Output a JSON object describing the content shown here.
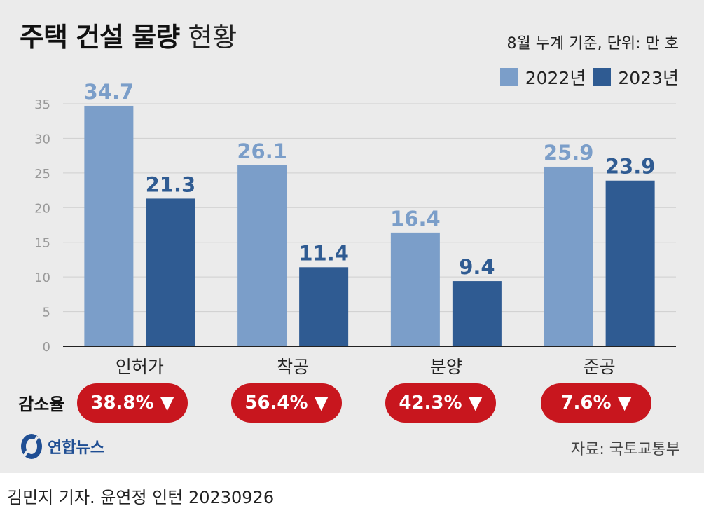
{
  "header": {
    "title_bold": "주택 건설 물량",
    "title_light": "현황",
    "subtitle": "8월 누계 기준, 단위: 만 호"
  },
  "chart_data": {
    "type": "bar",
    "categories": [
      "인허가",
      "착공",
      "분양",
      "준공"
    ],
    "series": [
      {
        "name": "2022년",
        "values": [
          34.7,
          26.1,
          16.4,
          25.9
        ],
        "color": "#7b9ec9",
        "labels": [
          "34.7",
          "26.1",
          "16.4",
          "25.9"
        ]
      },
      {
        "name": "2023년",
        "values": [
          21.3,
          11.4,
          9.4,
          23.9
        ],
        "color": "#2f5b92",
        "labels": [
          "21.3",
          "11.4",
          "9.4",
          "23.9"
        ]
      }
    ],
    "ylim": [
      0,
      35
    ],
    "yticks": [
      "0",
      "5",
      "10",
      "15",
      "20",
      "25",
      "30",
      "35"
    ],
    "grid": true,
    "legend": "top-right"
  },
  "decrease": {
    "label": "감소율",
    "rates": [
      "38.8% ▼",
      "56.4% ▼",
      "42.3% ▼",
      "7.6% ▼"
    ],
    "color": "#c8161e"
  },
  "footer": {
    "logo_text": "연합뉴스",
    "source": "자료: 국토교통부",
    "credit": "김민지 기자. 윤연정 인턴  20230926"
  }
}
